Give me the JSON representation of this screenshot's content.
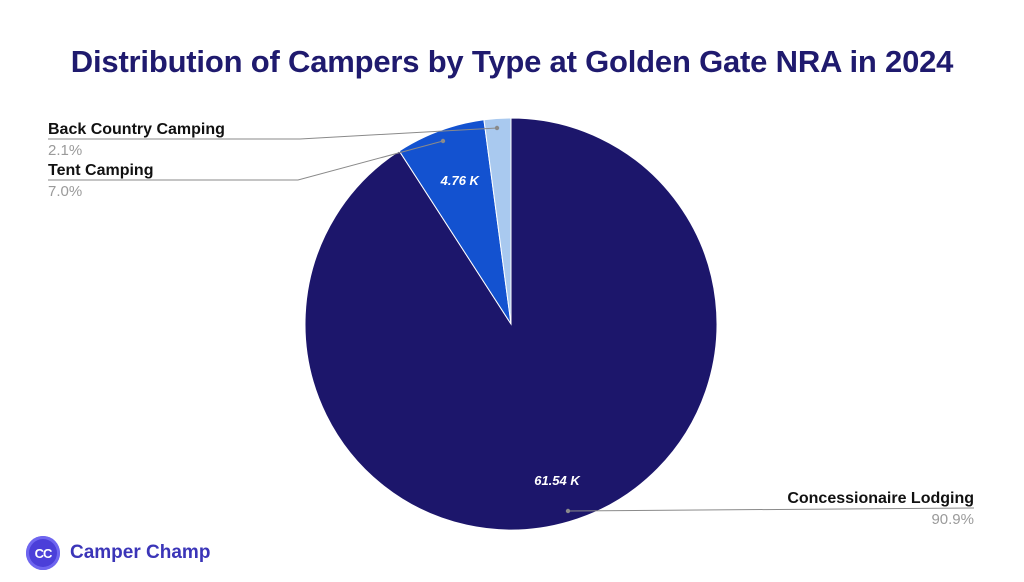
{
  "chart_data": {
    "type": "pie",
    "title": "Distribution of Campers by Type at Golden Gate NRA in 2024",
    "slices": [
      {
        "label": "Concessionaire Lodging",
        "value": 61.54,
        "value_label": "61.54 K",
        "percent_label": "90.9%",
        "color": "#1c166b"
      },
      {
        "label": "Tent Camping",
        "value": 4.76,
        "value_label": "4.76 K",
        "percent_label": "7.0%",
        "color": "#1352d0"
      },
      {
        "label": "Back Country Camping",
        "value": 1.42,
        "value_label": "",
        "percent_label": "2.1%",
        "color": "#a9c9ef"
      }
    ]
  },
  "brand": {
    "logo_text": "CC",
    "name": "Camper Champ",
    "logo_icon": "cc-logo-icon"
  },
  "colors": {
    "title": "#1f1a6e",
    "brand": "#3b35b8",
    "label_text": "#111111",
    "percent_text": "#9a9a9a",
    "leader_line": "#8a8a8a"
  }
}
